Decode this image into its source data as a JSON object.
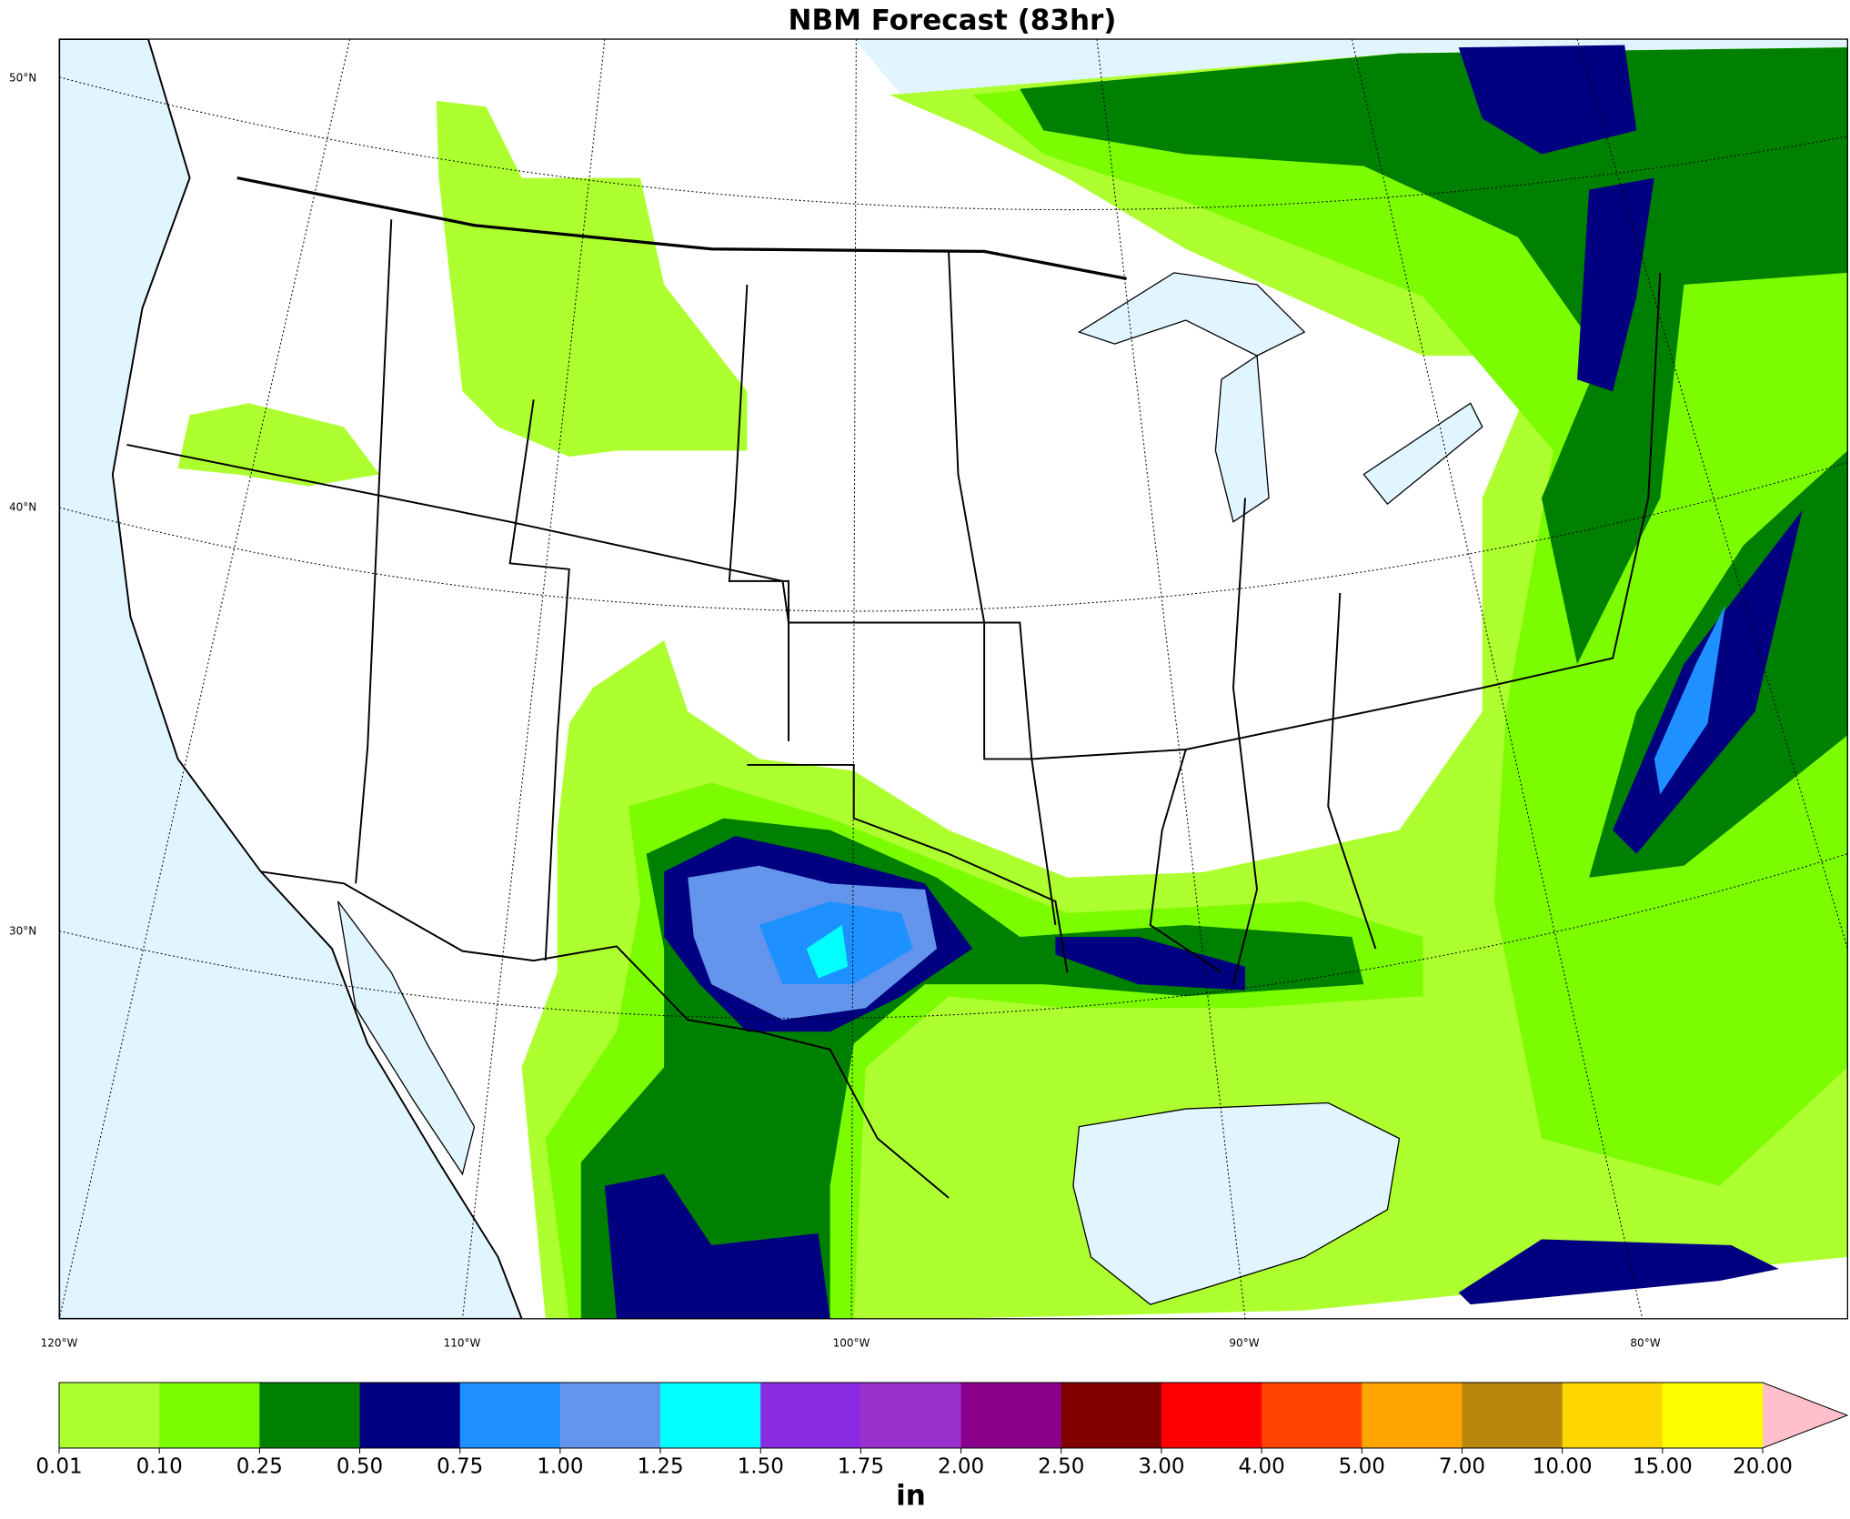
{
  "title": "NBM Forecast (83hr)",
  "lat_labels": [
    "50°N",
    "40°N",
    "30°N"
  ],
  "lon_labels": [
    "120°W",
    "110°W",
    "100°W",
    "90°W",
    "80°W"
  ],
  "colorbar": {
    "boundaries": [
      0.01,
      {
        "value": 0.1,
        "label": "0.10"
      },
      0.25,
      {
        "value": 0.5,
        "label": "0.50"
      },
      0.75,
      {
        "value": 1,
        "label": "1.00"
      },
      1.25,
      {
        "value": 1.5,
        "label": "1.50"
      },
      1.75,
      {
        "value": 2,
        "label": "2.00"
      },
      {
        "value": 2.5,
        "label": "2.50"
      },
      {
        "value": 3,
        "label": "3.00"
      },
      {
        "value": 4,
        "label": "4.00"
      },
      {
        "value": 5,
        "label": "5.00"
      },
      {
        "value": 7,
        "label": "7.00"
      },
      {
        "value": 10,
        "label": "10.00"
      },
      {
        "value": 15,
        "label": "15.00"
      },
      {
        "value": 20,
        "label": "20.00"
      }
    ],
    "colors": [
      "#adff2f",
      "#7cfc00",
      "#008000",
      "#000080",
      "#1e90ff",
      "#6495ed",
      "#00ffff",
      "#8a2be2",
      "#9932cc",
      "#8b008b",
      "#800000",
      "#ff0000",
      "#ff4500",
      "#ffa500",
      "#b8860b",
      "#ffd700",
      "#ffff00"
    ],
    "extend_color": "#ffc0cb",
    "label": "in"
  }
}
